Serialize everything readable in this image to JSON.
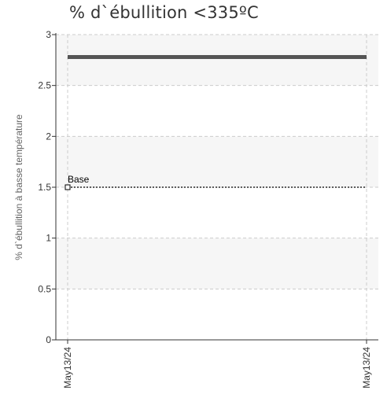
{
  "chart_data": {
    "type": "line",
    "title": "% d`ébullition <335ºC",
    "ylabel": "% d`ébullition à basse température",
    "xlabel": "",
    "x_tick_labels": [
      "May13/24",
      "May13/24"
    ],
    "y_ticks": [
      0,
      0.5,
      1,
      1.5,
      2,
      2.5,
      3
    ],
    "y_tick_labels": [
      "0",
      "0.5",
      "1",
      "1.5",
      "2",
      "2.5",
      "3"
    ],
    "ylim": [
      0,
      3
    ],
    "grid": true,
    "series": [
      {
        "role": "measured",
        "color": "#555555",
        "x": [
          "May13/24",
          "May13/24"
        ],
        "values": [
          2.78,
          2.78
        ]
      }
    ],
    "reference_line": {
      "label": "Base",
      "value": 1.5,
      "style": "dotted",
      "color": "#000000"
    },
    "band_colors": [
      "#f6f6f6",
      "#ffffff"
    ]
  }
}
